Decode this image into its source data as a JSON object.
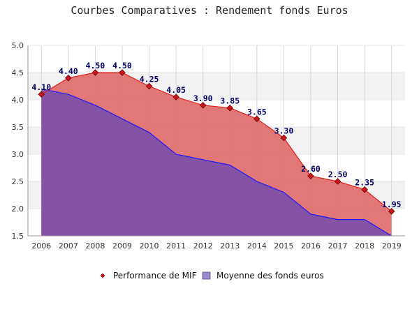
{
  "chart_data": {
    "type": "area",
    "title": "Courbes Comparatives : Rendement fonds Euros",
    "x": [
      "2006",
      "2007",
      "2008",
      "2009",
      "2010",
      "2011",
      "2012",
      "2013",
      "2014",
      "2015",
      "2016",
      "2017",
      "2018",
      "2019"
    ],
    "ylim": [
      1.5,
      5.0
    ],
    "y_ticks": [
      "1.5",
      "2.0",
      "2.5",
      "3.0",
      "3.5",
      "4.0",
      "4.5",
      "5.0"
    ],
    "grid": "horizontal bands and vertical lines",
    "legend_position": "bottom",
    "series": [
      {
        "name": "Performance de MIF",
        "values": [
          4.1,
          4.4,
          4.5,
          4.5,
          4.25,
          4.05,
          3.9,
          3.85,
          3.65,
          3.3,
          2.6,
          2.5,
          2.35,
          1.95
        ],
        "labels": [
          "4.10",
          "4.40",
          "4.50",
          "4.50",
          "4.25",
          "4.05",
          "3.90",
          "3.85",
          "3.65",
          "3.30",
          "2.60",
          "2.50",
          "2.35",
          "1.95"
        ],
        "line_color": "#e0201c",
        "fill_color": "#e07070",
        "marker_color": "#c8161a"
      },
      {
        "name": "Moyenne des fonds euros",
        "values": [
          4.2,
          4.1,
          3.9,
          3.65,
          3.4,
          3.0,
          2.9,
          2.8,
          2.5,
          2.3,
          1.9,
          1.8,
          1.8,
          1.5
        ],
        "line_color": "#1a1aff",
        "fill_color": "#7f50a8"
      }
    ]
  }
}
